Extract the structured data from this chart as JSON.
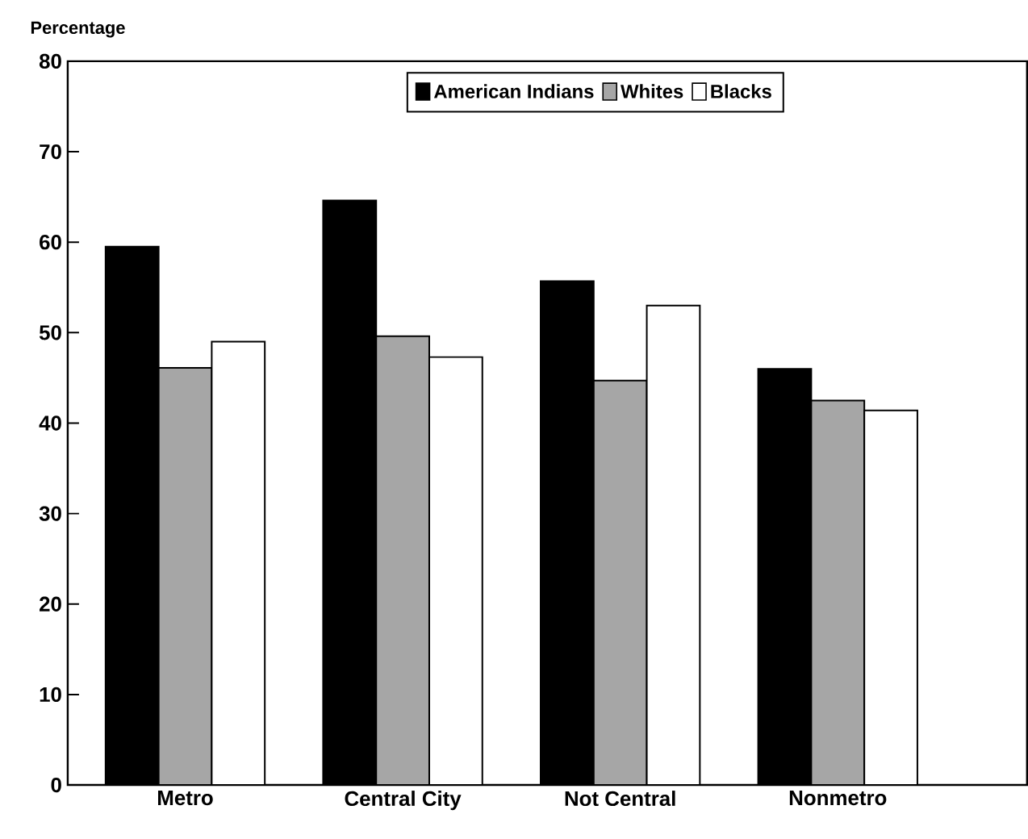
{
  "chart_data": {
    "type": "bar",
    "ylabel": "Percentage",
    "categories": [
      "Metro",
      "Central City",
      "Not Central",
      "Nonmetro"
    ],
    "series": [
      {
        "name": "American Indians",
        "color": "#000000",
        "values": [
          59.5,
          64.6,
          55.7,
          46.0
        ]
      },
      {
        "name": "Whites",
        "color": "#a6a6a6",
        "values": [
          46.1,
          49.6,
          44.7,
          42.5
        ]
      },
      {
        "name": "Blacks",
        "color": "#ffffff",
        "values": [
          49.0,
          47.3,
          53.0,
          41.4
        ]
      }
    ],
    "ylim": [
      0,
      80
    ],
    "yticks": [
      0,
      10,
      20,
      30,
      40,
      50,
      60,
      70,
      80
    ],
    "grid": false,
    "legend": "top"
  }
}
